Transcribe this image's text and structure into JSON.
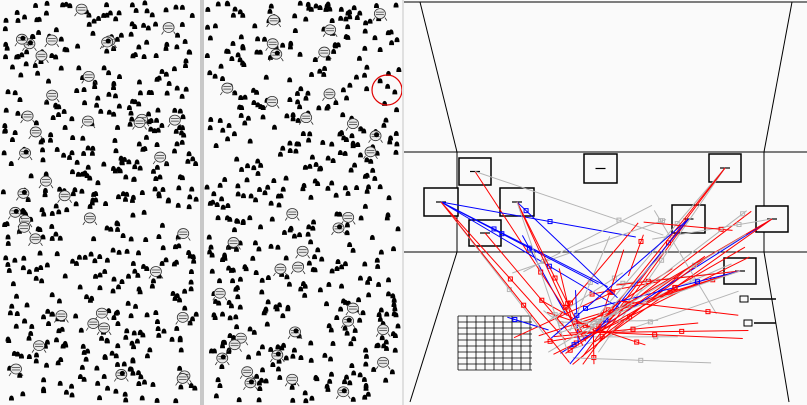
{
  "views": {
    "left_field": {
      "dot_color": "#000000",
      "agent_icon": "creature-icon"
    },
    "right_field": {
      "dot_color": "#000000",
      "agent_icon": "creature-icon",
      "highlight_color": "#e00000"
    },
    "graph_3d": {
      "room_line_color": "#000000",
      "link_colors": {
        "primary": "#ff0000",
        "secondary": "#0000ff",
        "tertiary": "#b4b4b4"
      }
    }
  }
}
